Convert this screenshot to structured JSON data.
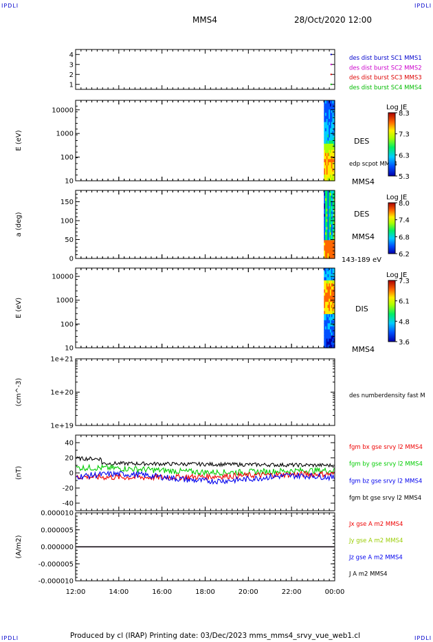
{
  "corner_label": "IPDLI",
  "header": {
    "spacecraft": "MMS4",
    "datetime": "28/Oct/2020 12:00"
  },
  "footer": {
    "text": "Produced by cl (IRAP)   Printing date: 03/Dec/2023   mms_mms4_srvy_vue_web1.cl"
  },
  "chart_data": [
    {
      "type": "scatter",
      "panel": "burst-availability",
      "ylim": [
        0.5,
        4.5
      ],
      "yticks": [
        "1",
        "2",
        "3",
        "4"
      ],
      "series": [
        {
          "name": "des dist burst SC1 MMS1",
          "color": "#0000cc",
          "y": 4
        },
        {
          "name": "des dist burst SC2 MMS2",
          "color": "#cc00cc",
          "y": 3
        },
        {
          "name": "des dist burst SC3 MMS3",
          "color": "#dd0000",
          "y": 2
        },
        {
          "name": "des dist burst SC4 MMS4",
          "color": "#00bb00",
          "y": 1
        }
      ],
      "burst_time": "23:50"
    },
    {
      "type": "heatmap",
      "panel": "electron-energy-spectrogram",
      "ylabel": "E (eV)",
      "yscale": "log",
      "yticks": [
        "10",
        "100",
        "1000",
        "10000"
      ],
      "label": "DES",
      "sublabel": "edp scpot MMS4",
      "bottom_label": "MMS4",
      "colorbar": {
        "title": "Log JE",
        "ticks": [
          "8.3",
          "7.3",
          "6.3",
          "5.3"
        ],
        "min": 5.3,
        "max": 8.3
      },
      "data_interval": [
        "23:30",
        "00:00"
      ]
    },
    {
      "type": "heatmap",
      "panel": "electron-pitch-angle",
      "ylabel": "a (deg)",
      "yticks": [
        "0",
        "50",
        "100",
        "150"
      ],
      "ylim": [
        0,
        180
      ],
      "label": "DES",
      "sublabel": "MMS4",
      "bottom_label": "143-189 eV",
      "colorbar": {
        "title": "Log JE",
        "ticks": [
          "8.0",
          "7.4",
          "6.8",
          "6.2"
        ],
        "min": 6.2,
        "max": 8.0
      },
      "data_interval": [
        "23:30",
        "00:00"
      ]
    },
    {
      "type": "heatmap",
      "panel": "ion-energy-spectrogram",
      "ylabel": "E (eV)",
      "yscale": "log",
      "yticks": [
        "10",
        "100",
        "1000",
        "10000"
      ],
      "label": "DIS",
      "bottom_label": "MMS4",
      "colorbar": {
        "title": "Log JE",
        "ticks": [
          "7.3",
          "6.1",
          "4.8",
          "3.6"
        ],
        "min": 3.6,
        "max": 7.3
      },
      "data_interval": [
        "23:30",
        "00:00"
      ]
    },
    {
      "type": "line",
      "panel": "number-density",
      "ylabel": "(cm^-3)",
      "yscale": "log",
      "yticks": [
        "1e+19",
        "1e+20",
        "1e+21"
      ],
      "series": [
        {
          "name": "des numberdensity fast M",
          "color": "#000000",
          "values": []
        }
      ]
    },
    {
      "type": "line",
      "panel": "magnetic-field",
      "ylabel": "(nT)",
      "ylim": [
        -50,
        50
      ],
      "yticks": [
        "40",
        "20",
        "0",
        "-20",
        "-40"
      ],
      "series": [
        {
          "name": "fgm bx gse srvy l2 MMS4",
          "color": "#ee0000",
          "level": -5
        },
        {
          "name": "fgm by gse srvy l2 MMS4",
          "color": "#00cc00",
          "level": 5
        },
        {
          "name": "fgm bz gse srvy l2 MMS4",
          "color": "#0000ee",
          "level": -5
        },
        {
          "name": "fgm bt gse srvy l2 MMS4",
          "color": "#000000",
          "level": 13
        }
      ]
    },
    {
      "type": "line",
      "panel": "current-density",
      "ylabel": "(A/m2)",
      "ylim": [
        -1e-05,
        1e-05
      ],
      "yticks": [
        "0.000010",
        "0.000005",
        "0.000000",
        "-0.000005",
        "-0.000010"
      ],
      "series": [
        {
          "name": "Jx gse A m2 MMS4",
          "color": "#ee0000",
          "level": 0
        },
        {
          "name": "Jy gse A m2 MMS4",
          "color": "#99cc00",
          "level": 0
        },
        {
          "name": "Jz gse A m2 MMS4",
          "color": "#0000ee",
          "level": 0
        },
        {
          "name": "J A m2 MMS4",
          "color": "#000000",
          "level": 0
        }
      ]
    }
  ],
  "time_axis": {
    "ticks": [
      "12:00",
      "14:00",
      "16:00",
      "18:00",
      "20:00",
      "22:00",
      "00:00"
    ]
  }
}
